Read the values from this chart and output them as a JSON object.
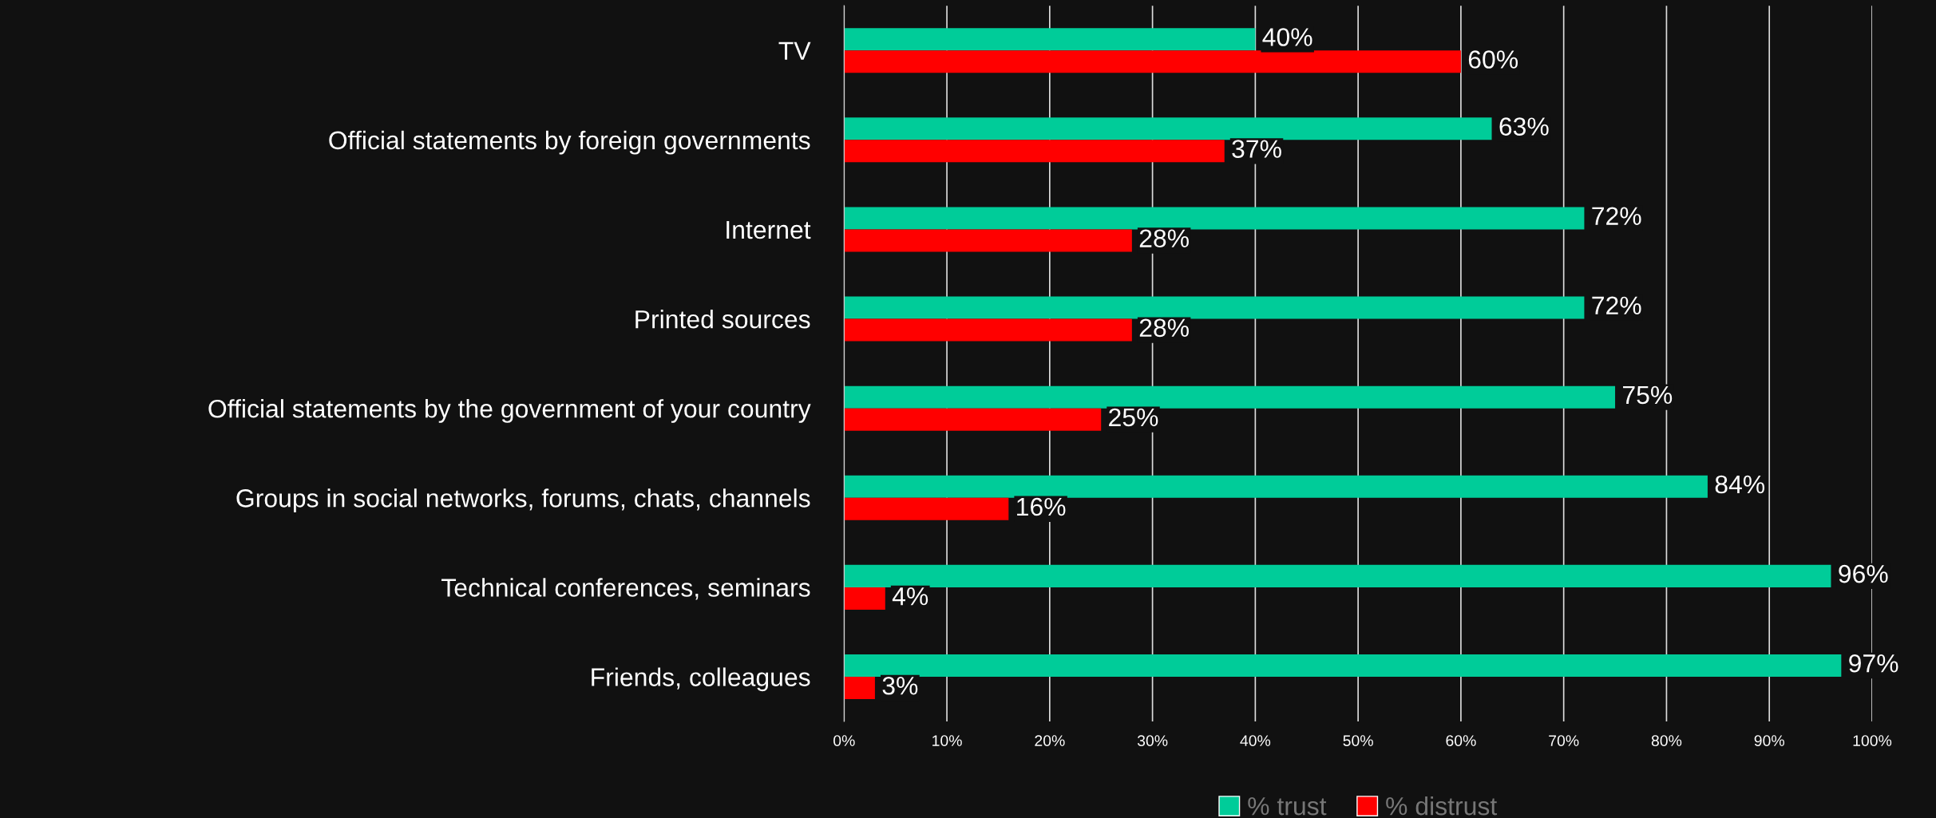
{
  "chart_data": {
    "type": "bar",
    "orientation": "horizontal",
    "categories": [
      "TV",
      "Official statements by foreign governments",
      "Internet",
      "Printed sources",
      "Official statements by the government of your country",
      "Groups in social networks, forums, chats, channels",
      "Technical conferences, seminars",
      "Friends, colleagues"
    ],
    "series": [
      {
        "name": "% trust",
        "color": "#00cc99",
        "values": [
          40,
          63,
          72,
          72,
          75,
          84,
          96,
          97
        ],
        "value_labels": [
          "40%",
          "63%",
          "72%",
          "72%",
          "75%",
          "84%",
          "96%",
          "97%"
        ]
      },
      {
        "name": "% distrust",
        "color": "#ff0000",
        "values": [
          60,
          37,
          28,
          28,
          25,
          16,
          4,
          3
        ],
        "value_labels": [
          "60%",
          "37%",
          "28%",
          "28%",
          "25%",
          "16%",
          "4%",
          "3%"
        ]
      }
    ],
    "xlim": [
      0,
      100
    ],
    "xticks": [
      {
        "value": 0,
        "label": "0%"
      },
      {
        "value": 10,
        "label": "10%"
      },
      {
        "value": 20,
        "label": "20%"
      },
      {
        "value": 30,
        "label": "30%"
      },
      {
        "value": 40,
        "label": "40%"
      },
      {
        "value": 50,
        "label": "50%"
      },
      {
        "value": 60,
        "label": "60%"
      },
      {
        "value": 70,
        "label": "70%"
      },
      {
        "value": 80,
        "label": "80%"
      },
      {
        "value": 90,
        "label": "90%"
      },
      {
        "value": 100,
        "label": "100%"
      }
    ],
    "grid": "x",
    "legend": "bottom"
  }
}
